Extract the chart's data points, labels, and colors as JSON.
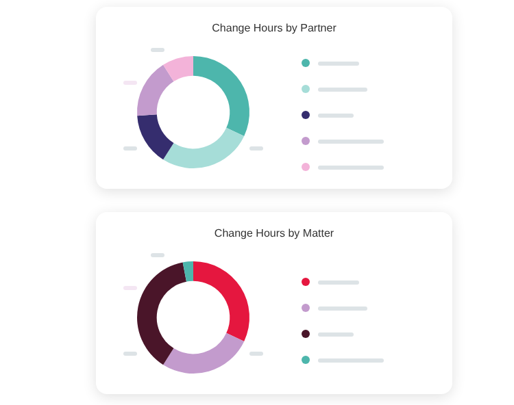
{
  "chart_data": [
    {
      "type": "donut",
      "title": "Change Hours by Partner",
      "categories": [
        null,
        null,
        null,
        null,
        null
      ],
      "values": [
        32,
        27,
        15,
        17,
        9
      ],
      "colors": [
        "#4db6ac",
        "#a6ddd8",
        "#352d6e",
        "#c39bcd",
        "#f3b3d9"
      ]
    },
    {
      "type": "donut",
      "title": "Change Hours by Matter",
      "categories": [
        null,
        null,
        null,
        null
      ],
      "values": [
        32,
        27,
        38,
        3
      ],
      "colors": [
        "#e5173f",
        "#c39bcd",
        "#4a1529",
        "#4db6ac"
      ]
    }
  ]
}
